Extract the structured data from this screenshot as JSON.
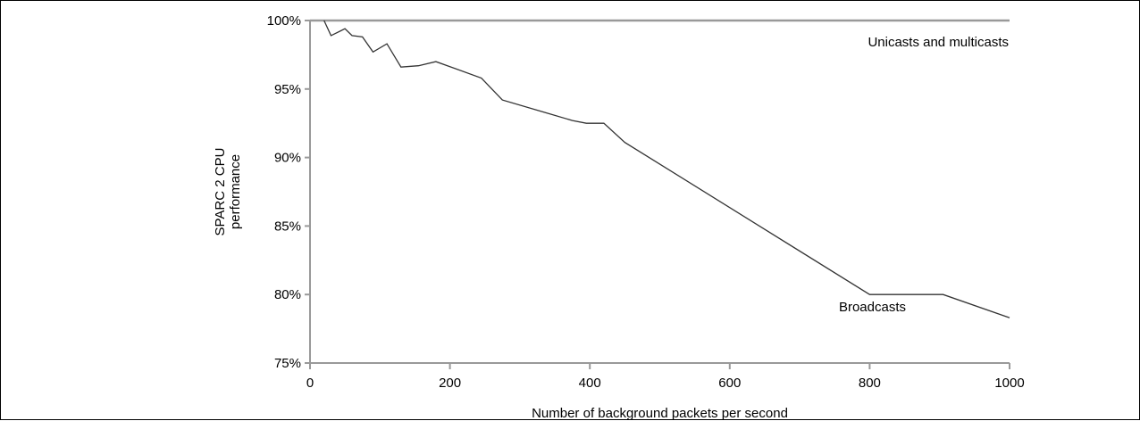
{
  "chart_data": {
    "type": "line",
    "title": "",
    "xlabel": "Number of background packets per second",
    "ylabel_lines": [
      "SPARC 2 CPU",
      "performance"
    ],
    "xlim": [
      0,
      1000
    ],
    "ylim": [
      75,
      100
    ],
    "x_ticks": [
      0,
      200,
      400,
      600,
      800,
      1000
    ],
    "x_tick_labels": [
      "0",
      "200",
      "400",
      "600",
      "800",
      "1000"
    ],
    "y_ticks": [
      75,
      80,
      85,
      90,
      95,
      100
    ],
    "y_tick_labels": [
      "75%",
      "80%",
      "85%",
      "90%",
      "95%",
      "100%"
    ],
    "grid": false,
    "colors": {
      "axis": "#999999",
      "unicast_line": "#999999",
      "broadcast_line": "#333333"
    },
    "series": [
      {
        "name": "Unicasts and multicasts",
        "x": [
          0,
          1000
        ],
        "y": [
          100,
          100
        ]
      },
      {
        "name": "Broadcasts",
        "x": [
          20,
          30,
          50,
          60,
          75,
          90,
          110,
          130,
          155,
          180,
          245,
          275,
          375,
          395,
          420,
          450,
          800,
          905,
          1000
        ],
        "y": [
          100,
          98.9,
          99.4,
          98.9,
          98.8,
          97.7,
          98.3,
          96.6,
          96.7,
          97.0,
          95.8,
          94.2,
          92.7,
          92.5,
          92.5,
          91.1,
          80.0,
          80.0,
          78.3
        ]
      }
    ],
    "annotations": [
      {
        "text": "Unicasts and multicasts",
        "series": 0
      },
      {
        "text": "Broadcasts",
        "series": 1
      }
    ]
  }
}
